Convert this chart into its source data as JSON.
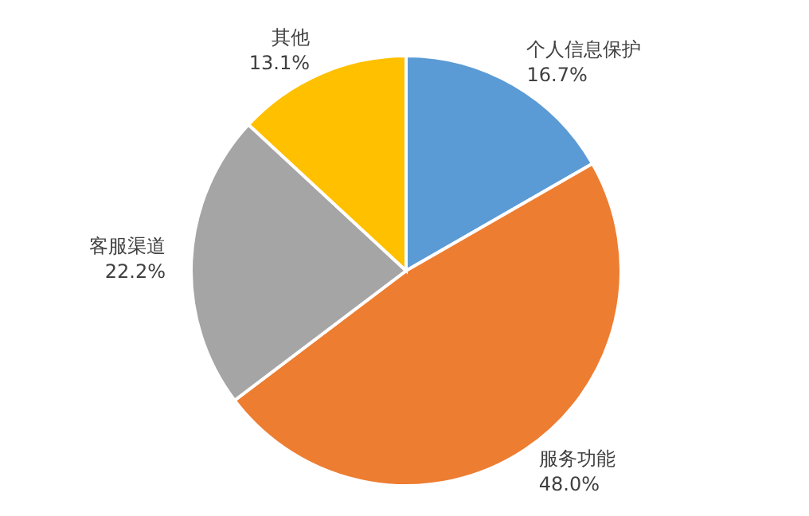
{
  "chart_data": {
    "type": "pie",
    "categories": [
      "个人信息保护",
      "服务功能",
      "客服渠道",
      "其他"
    ],
    "values": [
      16.7,
      48.0,
      22.2,
      13.1
    ],
    "value_labels": [
      "16.7%",
      "48.0%",
      "22.2%",
      "13.1%"
    ],
    "colors": [
      "#5b9bd5",
      "#ed7d31",
      "#a5a5a5",
      "#ffc000"
    ],
    "legend": false
  }
}
